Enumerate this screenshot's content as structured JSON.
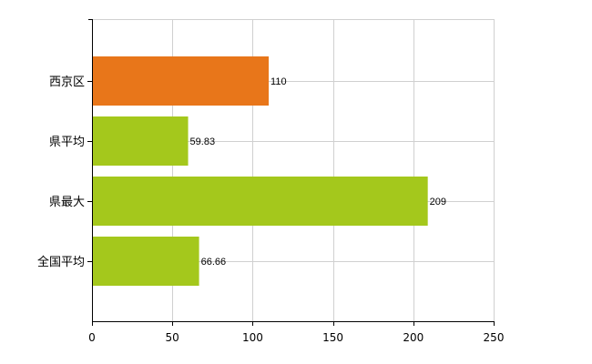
{
  "chart_data": {
    "type": "bar",
    "orientation": "horizontal",
    "categories": [
      "西京区",
      "県平均",
      "県最大",
      "全国平均"
    ],
    "values": [
      110,
      59.83,
      209,
      66.66
    ],
    "value_labels": [
      "110",
      "59.83",
      "209",
      "66.66"
    ],
    "bar_colors": [
      "#e8761a",
      "#a4c81c",
      "#a4c81c",
      "#a4c81c"
    ],
    "xlim": [
      0,
      250
    ],
    "xticks": [
      0,
      50,
      100,
      150,
      200,
      250
    ],
    "xtick_labels": [
      "0",
      "50",
      "100",
      "150",
      "200",
      "250"
    ],
    "title": "",
    "xlabel": "",
    "ylabel": "",
    "grid": true
  },
  "colors": {
    "highlight_bar": "#e8761a",
    "bar": "#a4c81c",
    "grid": "#d0d0d0",
    "axis": "#000000"
  }
}
